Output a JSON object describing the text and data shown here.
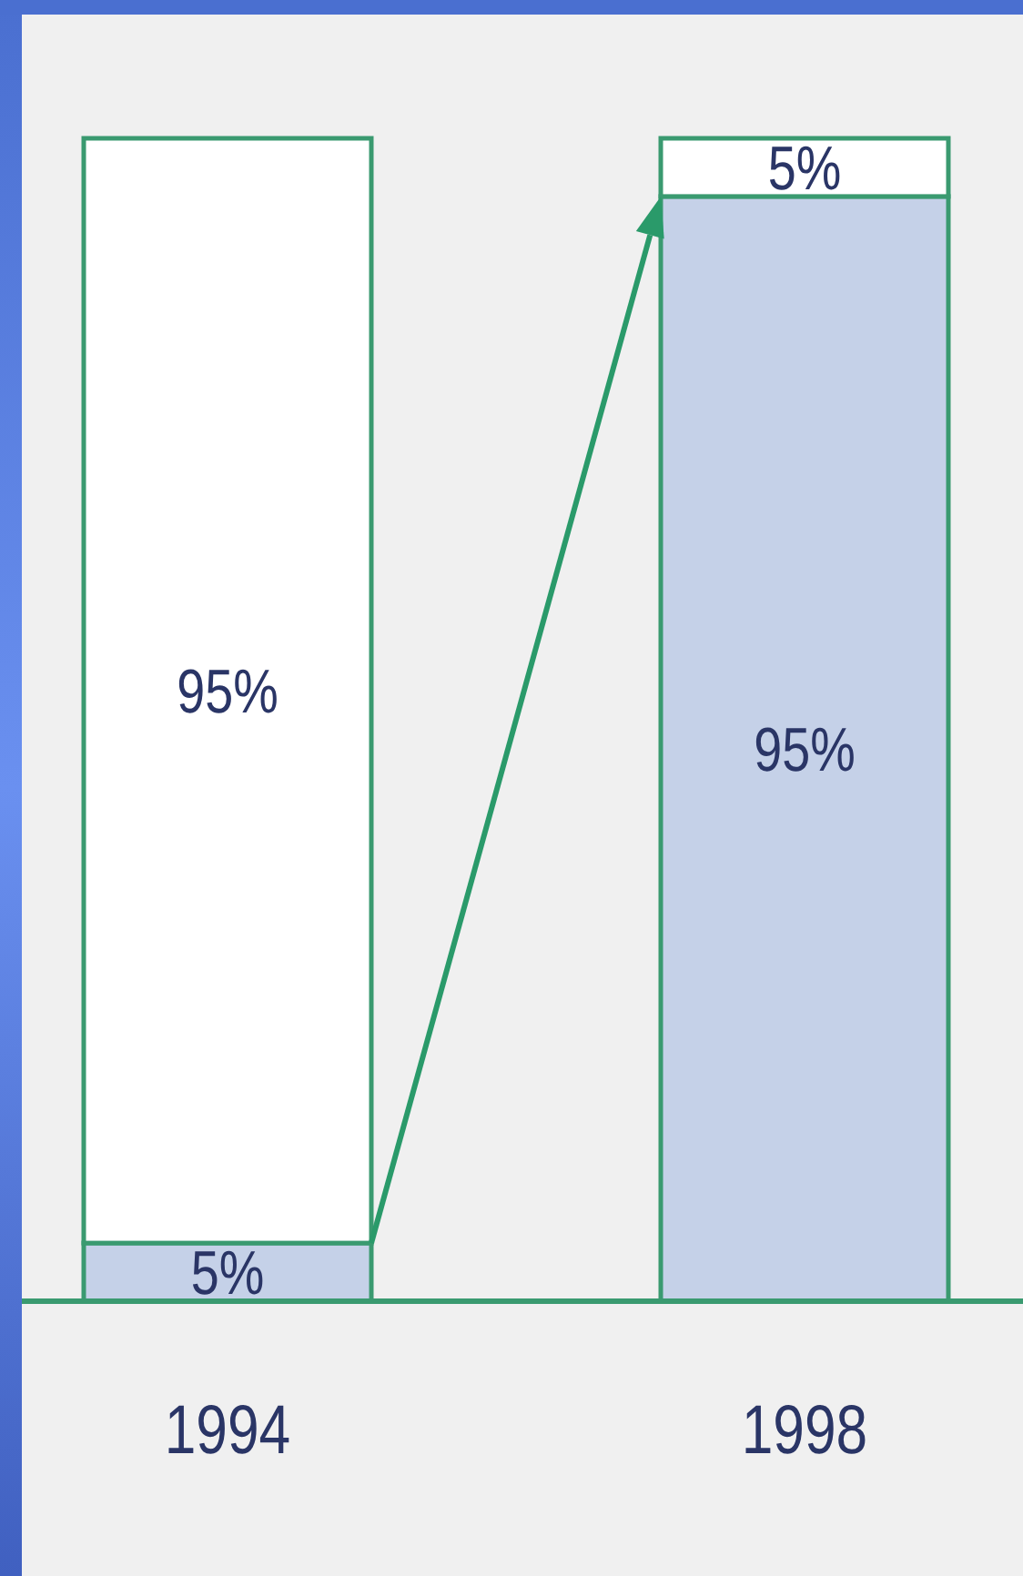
{
  "chart_data": {
    "type": "bar",
    "stacked": true,
    "categories": [
      "1994",
      "1998"
    ],
    "series": [
      {
        "color": "#c5d1e8",
        "values": [
          5,
          95
        ],
        "value_labels": [
          "5%",
          "95%"
        ]
      },
      {
        "color": "#ffffff",
        "values": [
          95,
          5
        ],
        "value_labels": [
          "95%",
          "5%"
        ]
      }
    ]
  }
}
